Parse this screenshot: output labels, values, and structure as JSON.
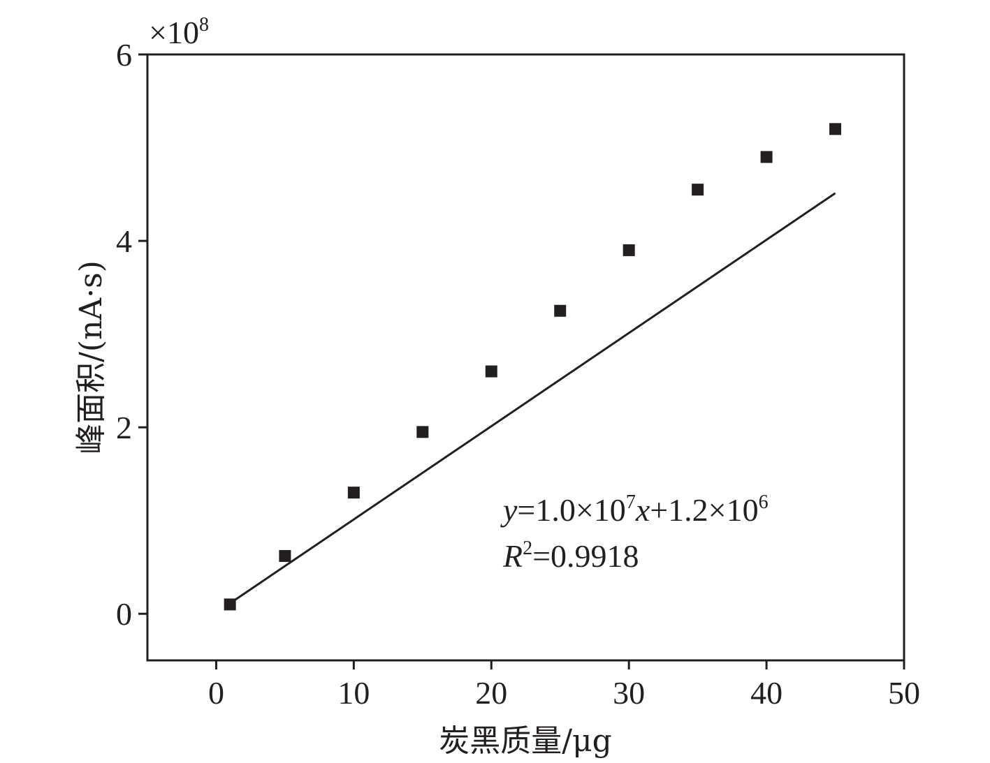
{
  "chart_data": {
    "type": "scatter",
    "xlabel": "炭黑质量/μg",
    "ylabel": "峰面积/(nA·s)",
    "y_multiplier": "×10",
    "y_multiplier_exp": "8",
    "xlim": [
      -5,
      50
    ],
    "ylim": [
      -0.5,
      6
    ],
    "x_ticks": [
      0,
      10,
      20,
      30,
      40,
      50
    ],
    "y_ticks": [
      0,
      2,
      4,
      6
    ],
    "x_tick_labels": [
      "0",
      "10",
      "20",
      "30",
      "40",
      "50"
    ],
    "y_tick_labels": [
      "0",
      "2",
      "4",
      "6"
    ],
    "series": [
      {
        "x": [
          1,
          5,
          10,
          15,
          20,
          25,
          30,
          35,
          40,
          45
        ],
        "y": [
          0.1,
          0.62,
          1.3,
          1.95,
          2.6,
          3.25,
          3.9,
          4.55,
          4.9,
          5.2
        ]
      }
    ],
    "fit_line": {
      "slope": 0.1,
      "intercept": 0.012,
      "x_range": [
        1,
        45
      ]
    },
    "equation": {
      "y_var": "y",
      "eq_part1": "=1.0×10",
      "eq_exp1": "7",
      "x_var": "x",
      "eq_part2": "+1.2×10",
      "eq_exp2": "6",
      "r_var": "R",
      "r_exp": "2",
      "r_value": "=0.9918"
    },
    "grid": false,
    "legend": "none"
  }
}
